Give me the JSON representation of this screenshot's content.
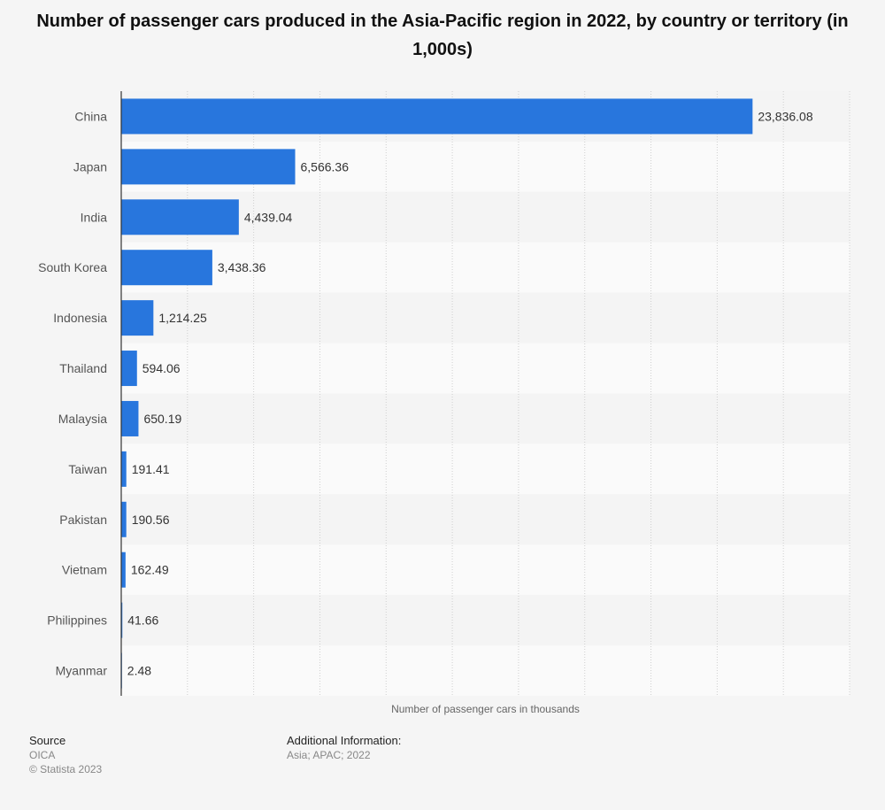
{
  "chart_data": {
    "type": "bar",
    "orientation": "horizontal",
    "title": "Number of passenger cars produced in the Asia-Pacific region in 2022, by country or territory (in 1,000s)",
    "xlabel": "Number of passenger cars in thousands",
    "ylabel": "",
    "categories": [
      "China",
      "Japan",
      "India",
      "South Korea",
      "Indonesia",
      "Thailand",
      "Malaysia",
      "Taiwan",
      "Pakistan",
      "Vietnam",
      "Philippines",
      "Myanmar"
    ],
    "values": [
      23836.08,
      6566.36,
      4439.04,
      3438.36,
      1214.25,
      594.06,
      650.19,
      191.41,
      190.56,
      162.49,
      41.66,
      2.48
    ],
    "value_labels": [
      "23,836.08",
      "6,566.36",
      "4,439.04",
      "3,438.36",
      "1,214.25",
      "594.06",
      "650.19",
      "191.41",
      "190.56",
      "162.49",
      "41.66",
      "2.48"
    ],
    "xlim": [
      0,
      27500
    ],
    "grid_step": 2500,
    "bar_color": "#2876dd",
    "grid": true
  },
  "footer": {
    "source_label": "Source",
    "source_value": "OICA",
    "copyright": "© Statista 2023",
    "additional_label": "Additional Information:",
    "additional_value": "Asia; APAC; 2022"
  }
}
